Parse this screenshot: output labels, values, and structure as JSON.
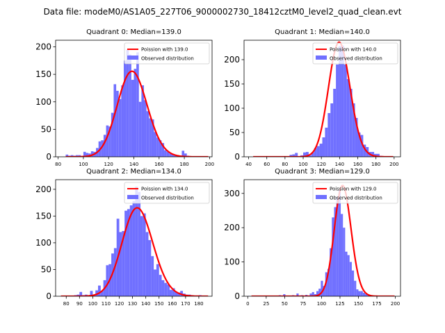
{
  "figure": {
    "suptitle": "Data file: modeM0/AS1A05_227T06_9000002730_18412cztM0_level2_quad_clean.evt"
  },
  "colors": {
    "hist_fill": "#7070ff",
    "poisson_line": "#ff0000",
    "axes": "#000000"
  },
  "chart_data": [
    {
      "type": "bar",
      "title": "Quadrant 0: Median=139.0",
      "median": 139.0,
      "xlim": [
        78,
        202
      ],
      "ylim": [
        0,
        212
      ],
      "xticks": [
        80,
        100,
        120,
        140,
        160,
        180,
        200
      ],
      "yticks": [
        0,
        50,
        100,
        150,
        200
      ],
      "hist": {
        "bins": [
          [
            86,
            88
          ],
          [
            88,
            90
          ],
          [
            90,
            92
          ],
          [
            92,
            94
          ],
          [
            94,
            96
          ],
          [
            96,
            98
          ],
          [
            98,
            100
          ],
          [
            100,
            102
          ],
          [
            102,
            104
          ],
          [
            104,
            106
          ],
          [
            106,
            108
          ],
          [
            108,
            110
          ],
          [
            110,
            112
          ],
          [
            112,
            114
          ],
          [
            114,
            116
          ],
          [
            116,
            118
          ],
          [
            118,
            120
          ],
          [
            120,
            122
          ],
          [
            122,
            124
          ],
          [
            124,
            126
          ],
          [
            126,
            128
          ],
          [
            128,
            130
          ],
          [
            130,
            132
          ],
          [
            132,
            134
          ],
          [
            134,
            136
          ],
          [
            136,
            138
          ],
          [
            138,
            140
          ],
          [
            140,
            142
          ],
          [
            142,
            144
          ],
          [
            144,
            146
          ],
          [
            146,
            148
          ],
          [
            148,
            150
          ],
          [
            150,
            152
          ],
          [
            152,
            154
          ],
          [
            154,
            156
          ],
          [
            156,
            158
          ],
          [
            158,
            160
          ],
          [
            160,
            162
          ],
          [
            162,
            164
          ],
          [
            164,
            166
          ],
          [
            166,
            168
          ],
          [
            168,
            170
          ],
          [
            170,
            172
          ],
          [
            172,
            174
          ],
          [
            174,
            176
          ],
          [
            176,
            178
          ],
          [
            178,
            180
          ],
          [
            180,
            182
          ],
          [
            182,
            184
          ],
          [
            184,
            186
          ],
          [
            186,
            188
          ],
          [
            188,
            190
          ],
          [
            190,
            192
          ],
          [
            192,
            194
          ],
          [
            194,
            196
          ],
          [
            196,
            198
          ]
        ],
        "counts": [
          4,
          2,
          3,
          2,
          3,
          3,
          1,
          9,
          7,
          6,
          10,
          9,
          16,
          28,
          30,
          40,
          57,
          55,
          80,
          132,
          120,
          105,
          130,
          175,
          195,
          186,
          140,
          160,
          190,
          100,
          130,
          103,
          83,
          70,
          68,
          45,
          35,
          30,
          25,
          12,
          9,
          6,
          5,
          4,
          3,
          2,
          11,
          6,
          2,
          1,
          1,
          0,
          0,
          0,
          0,
          1
        ]
      },
      "poisson": {
        "label": "Poission with 139.0",
        "mean": 139.0,
        "scale": 4600,
        "range": [
          86,
          199
        ]
      },
      "legend": {
        "poisson": "Poission with 139.0",
        "observed": "Observed distribution",
        "position": "upper right"
      }
    },
    {
      "type": "bar",
      "title": "Quadrant 1: Median=140.0",
      "median": 140.0,
      "xlim": [
        35,
        207
      ],
      "ylim": [
        0,
        240
      ],
      "xticks": [
        40,
        60,
        80,
        100,
        120,
        140,
        160,
        180,
        200
      ],
      "yticks": [
        0,
        50,
        100,
        150,
        200
      ],
      "hist": {
        "bins": [
          [
            85,
            88
          ],
          [
            88,
            91
          ],
          [
            91,
            94
          ],
          [
            94,
            97
          ],
          [
            97,
            100
          ],
          [
            100,
            103
          ],
          [
            103,
            106
          ],
          [
            106,
            109
          ],
          [
            109,
            112
          ],
          [
            112,
            115
          ],
          [
            115,
            118
          ],
          [
            118,
            121
          ],
          [
            121,
            124
          ],
          [
            124,
            127
          ],
          [
            127,
            130
          ],
          [
            130,
            133
          ],
          [
            133,
            136
          ],
          [
            136,
            139
          ],
          [
            139,
            142
          ],
          [
            142,
            145
          ],
          [
            145,
            148
          ],
          [
            148,
            151
          ],
          [
            151,
            154
          ],
          [
            154,
            157
          ],
          [
            157,
            160
          ],
          [
            160,
            163
          ],
          [
            163,
            166
          ],
          [
            166,
            169
          ],
          [
            169,
            172
          ],
          [
            172,
            175
          ],
          [
            175,
            178
          ],
          [
            178,
            181
          ],
          [
            181,
            184
          ],
          [
            184,
            187
          ]
        ],
        "counts": [
          4,
          5,
          8,
          1,
          3,
          9,
          10,
          3,
          9,
          18,
          22,
          27,
          40,
          60,
          90,
          110,
          140,
          190,
          228,
          229,
          190,
          160,
          140,
          110,
          80,
          50,
          45,
          25,
          20,
          10,
          10,
          6,
          6,
          2
        ]
      },
      "poisson": {
        "label": "Poission with 140.0",
        "mean": 140.0,
        "scale": 7000,
        "range": [
          45,
          199
        ]
      },
      "legend": {
        "poisson": "Poission with 140.0",
        "observed": "Observed distribution",
        "position": "upper right"
      }
    },
    {
      "type": "bar",
      "title": "Quadrant 2: Median=134.0",
      "median": 134.0,
      "xlim": [
        72,
        190
      ],
      "ylim": [
        0,
        218
      ],
      "xticks": [
        80,
        90,
        100,
        110,
        120,
        130,
        140,
        150,
        160,
        170,
        180
      ],
      "yticks": [
        0,
        50,
        100,
        150,
        200
      ],
      "hist": {
        "bins": [
          [
            78,
            80
          ],
          [
            80,
            82
          ],
          [
            82,
            84
          ],
          [
            84,
            86
          ],
          [
            86,
            88
          ],
          [
            88,
            90
          ],
          [
            90,
            92
          ],
          [
            92,
            94
          ],
          [
            94,
            96
          ],
          [
            96,
            98
          ],
          [
            98,
            100
          ],
          [
            100,
            102
          ],
          [
            102,
            104
          ],
          [
            104,
            106
          ],
          [
            106,
            108
          ],
          [
            108,
            110
          ],
          [
            110,
            112
          ],
          [
            112,
            114
          ],
          [
            114,
            116
          ],
          [
            116,
            118
          ],
          [
            118,
            120
          ],
          [
            120,
            122
          ],
          [
            122,
            124
          ],
          [
            124,
            126
          ],
          [
            126,
            128
          ],
          [
            128,
            130
          ],
          [
            130,
            132
          ],
          [
            132,
            134
          ],
          [
            134,
            136
          ],
          [
            136,
            138
          ],
          [
            138,
            140
          ],
          [
            140,
            142
          ],
          [
            142,
            144
          ],
          [
            144,
            146
          ],
          [
            146,
            148
          ],
          [
            148,
            150
          ],
          [
            150,
            152
          ],
          [
            152,
            154
          ],
          [
            154,
            156
          ],
          [
            156,
            158
          ],
          [
            158,
            160
          ],
          [
            160,
            162
          ],
          [
            162,
            164
          ],
          [
            164,
            166
          ],
          [
            166,
            168
          ],
          [
            168,
            170
          ],
          [
            170,
            172
          ],
          [
            172,
            174
          ],
          [
            174,
            176
          ],
          [
            176,
            178
          ],
          [
            178,
            180
          ],
          [
            180,
            182
          ],
          [
            182,
            184
          ],
          [
            184,
            186
          ]
        ],
        "counts": [
          1,
          0,
          0,
          1,
          2,
          3,
          8,
          2,
          3,
          2,
          10,
          3,
          11,
          20,
          10,
          30,
          58,
          60,
          80,
          90,
          145,
          120,
          122,
          160,
          163,
          170,
          178,
          205,
          195,
          150,
          155,
          120,
          105,
          75,
          50,
          60,
          40,
          30,
          25,
          22,
          12,
          15,
          8,
          7,
          10,
          5,
          3,
          3,
          2,
          1,
          1,
          2,
          1,
          1
        ]
      },
      "poisson": {
        "label": "Poission with 134.0",
        "mean": 134.0,
        "scale": 4800,
        "range": [
          76,
          187
        ]
      },
      "legend": {
        "poisson": "Poission with 134.0",
        "observed": "Observed distribution",
        "position": "upper right"
      }
    },
    {
      "type": "bar",
      "title": "Quadrant 3: Median=129.0",
      "median": 129.0,
      "xlim": [
        -5,
        207
      ],
      "ylim": [
        0,
        340
      ],
      "xticks": [
        0,
        25,
        50,
        75,
        100,
        125,
        150,
        175,
        200
      ],
      "yticks": [
        0,
        100,
        200,
        300
      ],
      "hist": {
        "bins": [
          [
            0,
            3
          ],
          [
            25,
            28
          ],
          [
            42,
            45
          ],
          [
            48,
            51
          ],
          [
            60,
            63
          ],
          [
            66,
            69
          ],
          [
            72,
            75
          ],
          [
            78,
            81
          ],
          [
            84,
            87
          ],
          [
            87,
            90
          ],
          [
            90,
            93
          ],
          [
            93,
            96
          ],
          [
            96,
            99
          ],
          [
            99,
            102
          ],
          [
            102,
            105
          ],
          [
            105,
            108
          ],
          [
            108,
            111
          ],
          [
            111,
            114
          ],
          [
            114,
            117
          ],
          [
            117,
            120
          ],
          [
            120,
            123
          ],
          [
            123,
            126
          ],
          [
            126,
            129
          ],
          [
            129,
            132
          ],
          [
            132,
            135
          ],
          [
            135,
            138
          ],
          [
            138,
            141
          ],
          [
            141,
            144
          ],
          [
            144,
            147
          ],
          [
            147,
            150
          ],
          [
            150,
            153
          ],
          [
            153,
            156
          ],
          [
            156,
            159
          ],
          [
            159,
            162
          ],
          [
            162,
            165
          ],
          [
            165,
            168
          ],
          [
            168,
            171
          ]
        ],
        "counts": [
          1,
          1,
          3,
          6,
          3,
          8,
          3,
          4,
          8,
          12,
          6,
          15,
          22,
          45,
          30,
          70,
          80,
          140,
          230,
          260,
          290,
          310,
          240,
          200,
          130,
          120,
          100,
          75,
          45,
          20,
          15,
          15,
          10,
          6,
          3,
          3,
          1
        ]
      },
      "poisson": {
        "label": "Poission with 129.0",
        "mean": 129.0,
        "scale": 9200,
        "range": [
          5,
          199
        ]
      },
      "legend": {
        "poisson": "Poission with 129.0",
        "observed": "Observed distribution",
        "position": "upper right"
      }
    }
  ]
}
